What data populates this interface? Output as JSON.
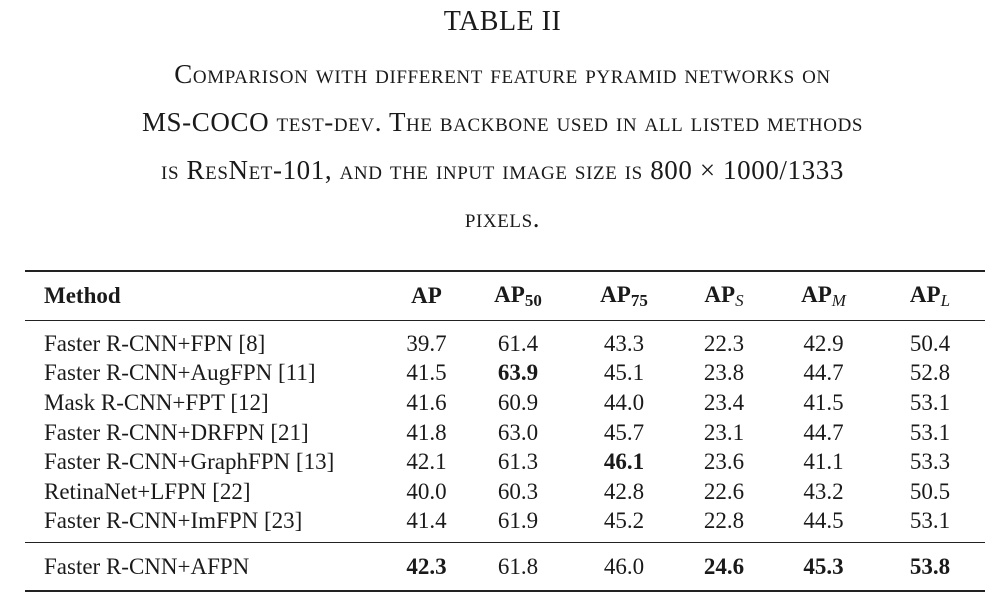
{
  "table_label": "TABLE II",
  "caption": {
    "line1": "Comparison with different feature pyramid networks on",
    "line2_a": "MS-COCO",
    "line2_b": " test-dev. The backbone used in all listed methods",
    "line3_a": "is ",
    "line3_b": "ResNet-101",
    "line3_c": ", and the input image size is ",
    "line3_d": "800 × 1000/1333",
    "line4": "pixels."
  },
  "columns": {
    "method": "Method",
    "ap": "AP",
    "ap50_base": "AP",
    "ap50_sub": "50",
    "ap75_base": "AP",
    "ap75_sub": "75",
    "aps_base": "AP",
    "aps_sub": "S",
    "apm_base": "AP",
    "apm_sub": "M",
    "apl_base": "AP",
    "apl_sub": "L"
  },
  "rows": [
    {
      "method": "Faster R-CNN+FPN [8]",
      "ap": "39.7",
      "ap50": "61.4",
      "ap75": "43.3",
      "aps": "22.3",
      "apm": "42.9",
      "apl": "50.4"
    },
    {
      "method": "Faster R-CNN+AugFPN [11]",
      "ap": "41.5",
      "ap50": "63.9",
      "ap75": "45.1",
      "aps": "23.8",
      "apm": "44.7",
      "apl": "52.8"
    },
    {
      "method": "Mask R-CNN+FPT [12]",
      "ap": "41.6",
      "ap50": "60.9",
      "ap75": "44.0",
      "aps": "23.4",
      "apm": "41.5",
      "apl": "53.1"
    },
    {
      "method": "Faster R-CNN+DRFPN [21]",
      "ap": "41.8",
      "ap50": "63.0",
      "ap75": "45.7",
      "aps": "23.1",
      "apm": "44.7",
      "apl": "53.1"
    },
    {
      "method": "Faster R-CNN+GraphFPN [13]",
      "ap": "42.1",
      "ap50": "61.3",
      "ap75": "46.1",
      "aps": "23.6",
      "apm": "41.1",
      "apl": "53.3"
    },
    {
      "method": "RetinaNet+LFPN [22]",
      "ap": "40.0",
      "ap50": "60.3",
      "ap75": "42.8",
      "aps": "22.6",
      "apm": "43.2",
      "apl": "50.5"
    },
    {
      "method": "Faster R-CNN+ImFPN [23]",
      "ap": "41.4",
      "ap50": "61.9",
      "ap75": "45.2",
      "aps": "22.8",
      "apm": "44.5",
      "apl": "53.1"
    }
  ],
  "ours": {
    "method": "Faster R-CNN+AFPN",
    "ap": "42.3",
    "ap50": "61.8",
    "ap75": "46.0",
    "aps": "24.6",
    "apm": "45.3",
    "apl": "53.8"
  }
}
